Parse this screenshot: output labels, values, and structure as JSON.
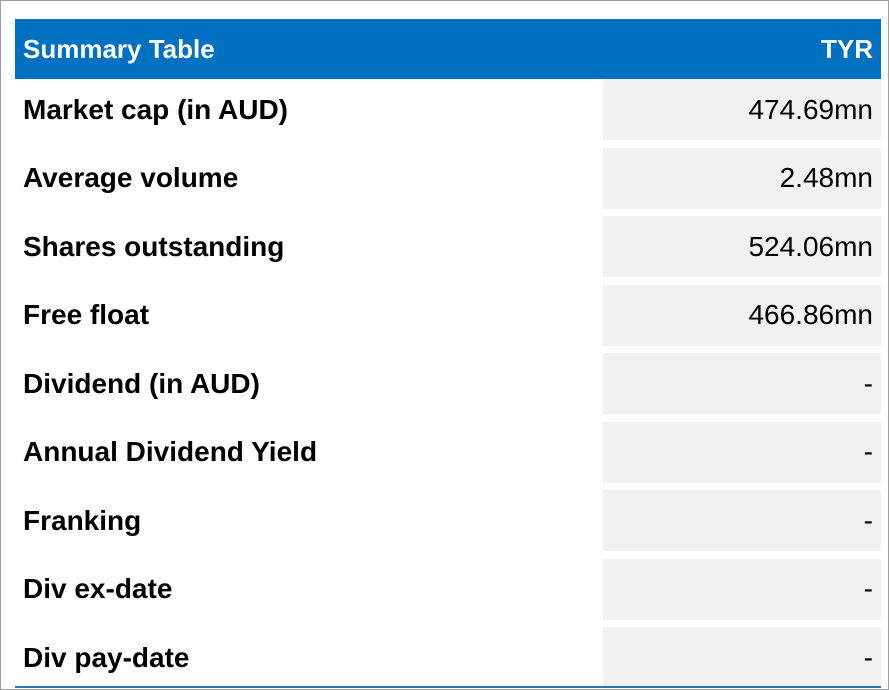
{
  "table": {
    "title": "Summary Table",
    "ticker": "TYR",
    "header_color": "#0070c0",
    "rows": [
      {
        "label": "Market cap (in AUD)",
        "value": "474.69mn"
      },
      {
        "label": "Average volume",
        "value": "2.48mn"
      },
      {
        "label": "Shares outstanding",
        "value": "524.06mn"
      },
      {
        "label": "Free float",
        "value": "466.86mn"
      },
      {
        "label": "Dividend (in AUD)",
        "value": "-"
      },
      {
        "label": "Annual Dividend Yield",
        "value": "-"
      },
      {
        "label": "Franking",
        "value": "-"
      },
      {
        "label": "Div ex-date",
        "value": "-"
      },
      {
        "label": "Div pay-date",
        "value": "-"
      }
    ]
  }
}
